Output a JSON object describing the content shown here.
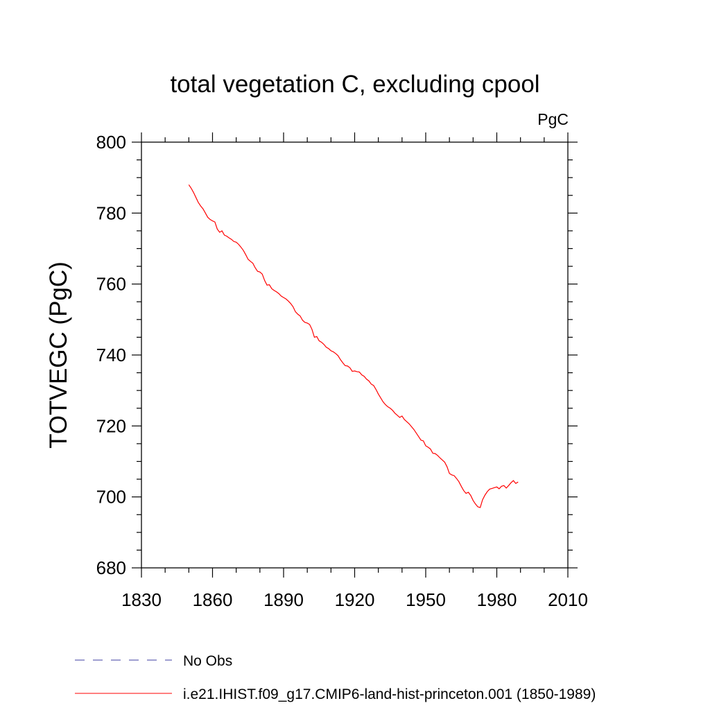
{
  "chart_data": {
    "type": "line",
    "title": "total vegetation C, excluding cpool",
    "units_label": "PgC",
    "ylabel": "TOTVEGC  (PgC)",
    "xlabel": "",
    "xlim": [
      1830,
      2010
    ],
    "ylim": [
      680,
      800
    ],
    "xticks": [
      1830,
      1860,
      1890,
      1920,
      1950,
      1980,
      2010
    ],
    "yticks": [
      680,
      700,
      720,
      740,
      760,
      780,
      800
    ],
    "grid": false,
    "legend_placement": "bottom",
    "series": [
      {
        "name": "i.e21.IHIST.f09_g17.CMIP6-land-hist-princeton.001 (1850-1989)",
        "color": "#ff0000",
        "style": "solid",
        "x": [
          1850,
          1851,
          1852,
          1853,
          1854,
          1855,
          1856,
          1857,
          1858,
          1859,
          1860,
          1861,
          1862,
          1863,
          1864,
          1865,
          1866,
          1867,
          1868,
          1869,
          1870,
          1871,
          1872,
          1873,
          1874,
          1875,
          1876,
          1877,
          1878,
          1879,
          1880,
          1881,
          1882,
          1883,
          1884,
          1885,
          1886,
          1887,
          1888,
          1889,
          1890,
          1891,
          1892,
          1893,
          1894,
          1895,
          1896,
          1897,
          1898,
          1899,
          1900,
          1901,
          1902,
          1903,
          1904,
          1905,
          1906,
          1907,
          1908,
          1909,
          1910,
          1911,
          1912,
          1913,
          1914,
          1915,
          1916,
          1917,
          1918,
          1919,
          1920,
          1921,
          1922,
          1923,
          1924,
          1925,
          1926,
          1927,
          1928,
          1929,
          1930,
          1931,
          1932,
          1933,
          1934,
          1935,
          1936,
          1937,
          1938,
          1939,
          1940,
          1941,
          1942,
          1943,
          1944,
          1945,
          1946,
          1947,
          1948,
          1949,
          1950,
          1951,
          1952,
          1953,
          1954,
          1955,
          1956,
          1957,
          1958,
          1959,
          1960,
          1961,
          1962,
          1963,
          1964,
          1965,
          1966,
          1967,
          1968,
          1969,
          1970,
          1971,
          1972,
          1973,
          1974,
          1975,
          1976,
          1977,
          1978,
          1979,
          1980,
          1981,
          1982,
          1983,
          1984,
          1985,
          1986,
          1987,
          1988,
          1989
        ],
        "y": [
          788.0,
          787.0,
          785.8,
          784.4,
          783.0,
          782.0,
          781.2,
          780.0,
          778.8,
          778.2,
          777.8,
          777.5,
          775.5,
          774.6,
          775.0,
          773.8,
          773.5,
          773.0,
          772.6,
          772.0,
          771.8,
          771.2,
          770.4,
          769.5,
          768.3,
          767.0,
          766.4,
          765.9,
          764.6,
          763.6,
          763.4,
          762.8,
          761.0,
          759.7,
          759.8,
          758.7,
          758.2,
          757.8,
          757.3,
          756.6,
          756.2,
          755.8,
          755.2,
          754.5,
          753.6,
          752.2,
          751.5,
          751.0,
          749.8,
          749.2,
          749.0,
          748.6,
          747.2,
          745.0,
          745.2,
          744.0,
          743.6,
          743.0,
          742.2,
          741.8,
          741.2,
          740.9,
          740.4,
          739.8,
          738.7,
          737.8,
          737.0,
          736.9,
          736.4,
          735.4,
          735.5,
          735.3,
          735.2,
          734.4,
          734.0,
          733.2,
          732.7,
          731.8,
          731.4,
          730.3,
          729.0,
          727.9,
          726.8,
          726.0,
          725.4,
          725.0,
          724.4,
          723.6,
          723.0,
          722.4,
          722.8,
          721.8,
          721.2,
          720.6,
          719.8,
          719.0,
          718.0,
          717.0,
          716.0,
          715.8,
          714.4,
          714.0,
          713.5,
          712.3,
          712.2,
          711.7,
          711.0,
          710.4,
          709.8,
          708.5,
          706.6,
          706.2,
          706.0,
          705.2,
          704.3,
          703.0,
          701.8,
          701.0,
          701.3,
          700.4,
          699.0,
          698.0,
          697.2,
          697.0,
          699.2,
          700.5,
          701.5,
          702.2,
          702.4,
          702.6,
          702.8,
          702.3,
          703.0,
          703.2,
          702.5,
          703.2,
          704.0,
          704.6,
          703.8,
          704.2
        ]
      },
      {
        "name": "No Obs",
        "color": "#3c3ca0",
        "style": "dashed",
        "x": [],
        "y": []
      }
    ]
  }
}
